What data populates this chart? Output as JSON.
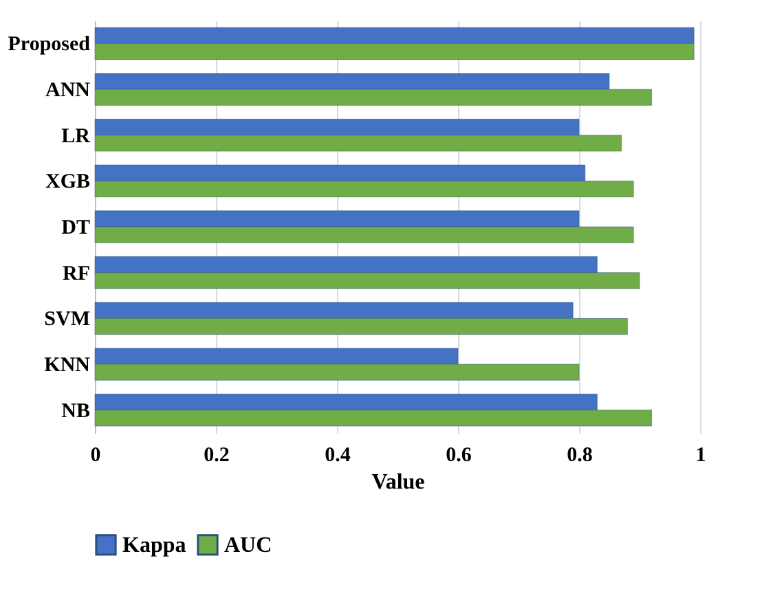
{
  "chart_data": {
    "type": "bar",
    "orientation": "horizontal",
    "xlabel": "Value",
    "categories": [
      "Proposed",
      "ANN",
      "LR",
      "XGB",
      "DT",
      "RF",
      "SVM",
      "KNN",
      "NB"
    ],
    "series": [
      {
        "name": "Kappa",
        "color": "#4472c4",
        "values": [
          0.99,
          0.85,
          0.8,
          0.81,
          0.8,
          0.83,
          0.79,
          0.6,
          0.83
        ]
      },
      {
        "name": "AUC",
        "color": "#70ad47",
        "values": [
          0.99,
          0.92,
          0.87,
          0.89,
          0.89,
          0.9,
          0.88,
          0.8,
          0.92
        ]
      }
    ],
    "xlim": [
      0,
      1
    ],
    "xticks": [
      0,
      0.2,
      0.4,
      0.6,
      0.8,
      1
    ],
    "grid": "x",
    "legend": "bottom"
  }
}
